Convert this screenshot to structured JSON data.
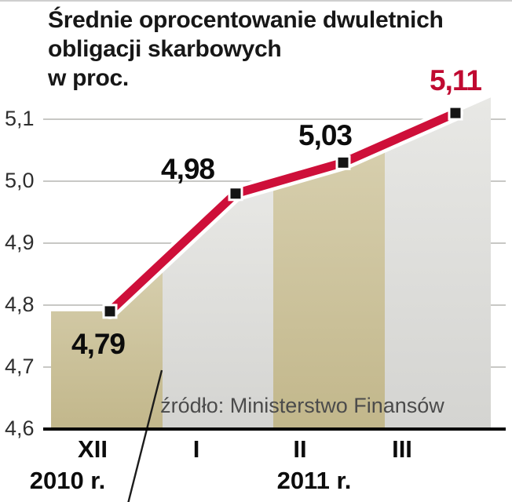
{
  "title_lines": [
    "Średnie oprocentowanie dwuletnich",
    "obligacji skarbowych",
    "w proc."
  ],
  "source": "źródło: Ministerstwo Finansów",
  "chart_data": {
    "type": "line",
    "title": "Średnie oprocentowanie dwuletnich obligacji skarbowych w proc.",
    "categories": [
      "XII",
      "I",
      "II",
      "III"
    ],
    "x_period_labels": [
      "2010 r.",
      "2011 r."
    ],
    "values": [
      4.79,
      4.98,
      5.03,
      5.11
    ],
    "point_labels": [
      "4,79",
      "4,98",
      "5,03",
      "5,11"
    ],
    "y_ticks": [
      "5,1",
      "5,0",
      "4,9",
      "4,8",
      "4,7",
      "4,6"
    ],
    "ylim": [
      4.6,
      5.1
    ],
    "grid": true,
    "legend": "none",
    "source": "źródło: Ministerstwo Finansów",
    "colors": {
      "line": "#ce0f39",
      "line_casing": "#ffffff",
      "marker": "#141414",
      "last_label": "#c00a31",
      "label": "#0c0c0c",
      "stripe_khaki": "#c2b78b",
      "stripe_khaki_light": "#d7cfae",
      "stripe_gray": "#d4d4d1",
      "stripe_gray_light": "#e8e8e5",
      "gridline": "#b6b6b2",
      "axis": "#000000"
    }
  }
}
